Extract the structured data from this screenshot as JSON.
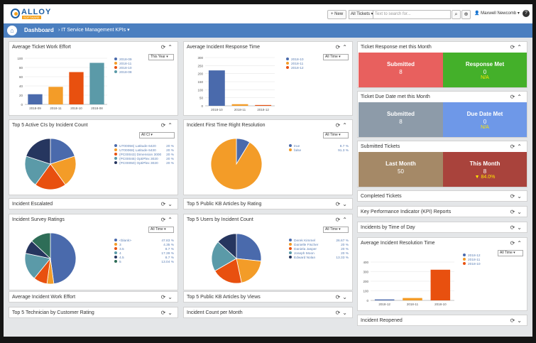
{
  "header": {
    "logo_name": "ALLOY",
    "logo_sub": "SOFTWARE",
    "new_button": "+ New",
    "ticket_filter": "All Tickets",
    "search_placeholder": "Text to search for...",
    "user": "Maxwell Newcomb",
    "help": "?"
  },
  "nav": {
    "dashboard": "Dashboard",
    "kpi": "IT Service Management KPIs"
  },
  "panels": {
    "work_effort": {
      "title": "Average Ticket Work Effort",
      "filter": "This Year"
    },
    "response_time": {
      "title": "Average Incident Response Time",
      "filter": "All Time"
    },
    "active_cis": {
      "title": "Top 5 Active CIs by Incident Count",
      "filter": "All CI"
    },
    "first_time": {
      "title": "Incident First Time Right Resolution",
      "filter": "All Time"
    },
    "escalated": {
      "title": "Incident Escalated"
    },
    "kb_rating": {
      "title": "Top 5 Public KB Articles by Rating"
    },
    "survey": {
      "title": "Incident Survey Ratings",
      "filter": "All Time"
    },
    "users": {
      "title": "Top 5 Users by Incident Count",
      "filter": "All Time"
    },
    "avg_effort2": {
      "title": "Average Incident Work Effort"
    },
    "kb_views": {
      "title": "Top 5 Public KB Articles by Views"
    },
    "technician": {
      "title": "Top 5 Technician by Customer Rating"
    },
    "per_month": {
      "title": "Incident Count per Month"
    },
    "ticket_response": {
      "title": "Ticket Response met this Month"
    },
    "due_date": {
      "title": "Ticket Due Date met this Month"
    },
    "submitted": {
      "title": "Submitted Tickets"
    },
    "completed": {
      "title": "Completed Tickets"
    },
    "kpi_reports": {
      "title": "Key Performance Indicator (KPI) Reports"
    },
    "time_of_day": {
      "title": "Incidents by Time of Day"
    },
    "resolution_time": {
      "title": "Average Incident Resolution Time",
      "filter": "All Time"
    },
    "reopened": {
      "title": "Incident Reopened"
    }
  },
  "tiles": {
    "response_submitted": {
      "label": "Submitted",
      "value": "8"
    },
    "response_met": {
      "label": "Response Met",
      "value": "0",
      "pct": "N/A"
    },
    "due_submitted": {
      "label": "Submitted",
      "value": "8"
    },
    "due_met": {
      "label": "Due Date Met",
      "value": "0",
      "pct": "N/A"
    },
    "last_month": {
      "label": "Last Month",
      "value": "50"
    },
    "this_month": {
      "label": "This Month",
      "value": "8",
      "pct": "▼ 84.0%"
    }
  },
  "colors": {
    "blue": "#4a6aac",
    "orange": "#f39c28",
    "red": "#e8500f",
    "teal": "#5b9aa8",
    "navy": "#26365f",
    "green": "#2e6d57",
    "tile_red": "#e8605e",
    "tile_green": "#44b02a",
    "tile_gray": "#8d9ba9",
    "tile_blue": "#6e98e8",
    "tile_brown": "#a58967",
    "tile_crimson": "#a9433c"
  },
  "chart_data": [
    {
      "id": "work_effort",
      "type": "bar",
      "categories": [
        "2018-09",
        "2018-11",
        "2018-10",
        "2018-08"
      ],
      "values": [
        22,
        38,
        70,
        90
      ],
      "ylim": [
        0,
        100
      ],
      "yticks": [
        0,
        20,
        40,
        60,
        80,
        100
      ],
      "legend": [
        "2018-09",
        "2018-11",
        "2018-10",
        "2018-08"
      ]
    },
    {
      "id": "response_time",
      "type": "bar",
      "categories": [
        "2018-10",
        "2018-11",
        "2018-12"
      ],
      "values": [
        220,
        10,
        5
      ],
      "ylim": [
        0,
        300
      ],
      "yticks": [
        0,
        50,
        100,
        150,
        200,
        250,
        300
      ],
      "legend": [
        "2018-10",
        "2018-11",
        "2018-12"
      ]
    },
    {
      "id": "active_cis",
      "type": "pie",
      "labels": [
        "UT00056) Latitude 6420",
        "UT00068) Latitude 6430",
        "(PC00043) Dimension 3000",
        "(PC00045) OptiPlex 3020",
        "(PC00050) OptiPlex 3020"
      ],
      "values": [
        20,
        20,
        20,
        20,
        20
      ],
      "value_labels": [
        "20 %",
        "20 %",
        "20 %",
        "20 %",
        "20 %"
      ]
    },
    {
      "id": "first_time",
      "type": "pie",
      "labels": [
        "true",
        "false"
      ],
      "values": [
        8.7,
        91.3
      ],
      "value_labels": [
        "8.7 %",
        "91.3 %"
      ]
    },
    {
      "id": "survey",
      "type": "pie",
      "labels": [
        "<blank>",
        "3",
        "3.5",
        "4",
        "4.5",
        "5"
      ],
      "values": [
        47.83,
        4.35,
        8.7,
        17.39,
        8.7,
        13.04
      ],
      "value_labels": [
        "47.83 %",
        "4.35 %",
        "8.7 %",
        "17.39 %",
        "8.7 %",
        "13.04 %"
      ]
    },
    {
      "id": "users",
      "type": "pie",
      "labels": [
        "Derek Kimmel",
        "Danielle Fischer",
        "Daniela Jasper",
        "Joseph Moon",
        "Edward Nolan"
      ],
      "values": [
        26.67,
        20,
        20,
        20,
        13.33
      ],
      "value_labels": [
        "26.67 %",
        "20 %",
        "20 %",
        "20 %",
        "13.33 %"
      ]
    },
    {
      "id": "resolution_time",
      "type": "bar",
      "categories": [
        "2018-12",
        "2018-11",
        "2018-10"
      ],
      "values": [
        10,
        25,
        320
      ],
      "ylim": [
        0,
        400
      ],
      "yticks": [
        0,
        100,
        200,
        300,
        400
      ],
      "legend": [
        "2018-12",
        "2018-11",
        "2018-10"
      ]
    }
  ]
}
